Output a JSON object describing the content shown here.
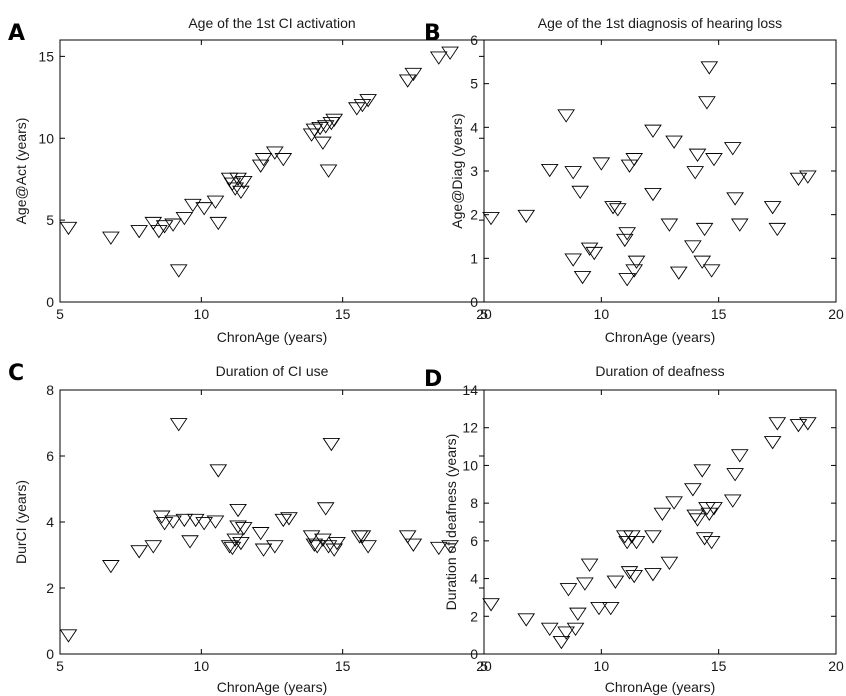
{
  "chart_data": [
    {
      "type": "scatter",
      "letter": "A",
      "title": "Age of the 1st CI activation",
      "xlabel": "ChronAge (years)",
      "ylabel": "Age@Act (years)",
      "xlim": [
        5,
        20
      ],
      "ylim": [
        0,
        16
      ],
      "xticks": [
        5,
        10,
        15,
        20
      ],
      "yticks": [
        0,
        5,
        10,
        15
      ],
      "grid": false,
      "marker": "triangle-down",
      "points": [
        [
          5.3,
          4.6
        ],
        [
          6.8,
          4.0
        ],
        [
          7.8,
          4.4
        ],
        [
          8.3,
          4.9
        ],
        [
          8.5,
          4.4
        ],
        [
          8.7,
          4.7
        ],
        [
          9.0,
          4.8
        ],
        [
          9.2,
          2.0
        ],
        [
          9.4,
          5.2
        ],
        [
          9.7,
          6.0
        ],
        [
          10.1,
          5.8
        ],
        [
          10.5,
          6.2
        ],
        [
          10.6,
          4.9
        ],
        [
          11.0,
          7.6
        ],
        [
          11.1,
          7.3
        ],
        [
          11.2,
          7.0
        ],
        [
          11.3,
          7.6
        ],
        [
          11.4,
          6.8
        ],
        [
          11.5,
          7.4
        ],
        [
          12.1,
          8.4
        ],
        [
          12.2,
          8.8
        ],
        [
          12.6,
          9.2
        ],
        [
          12.9,
          8.8
        ],
        [
          13.9,
          10.3
        ],
        [
          14.0,
          10.6
        ],
        [
          14.2,
          10.7
        ],
        [
          14.3,
          9.8
        ],
        [
          14.4,
          10.8
        ],
        [
          14.5,
          8.1
        ],
        [
          14.6,
          11.0
        ],
        [
          14.7,
          11.2
        ],
        [
          15.5,
          11.9
        ],
        [
          15.7,
          12.1
        ],
        [
          15.9,
          12.4
        ],
        [
          17.3,
          13.6
        ],
        [
          17.5,
          14.0
        ],
        [
          18.4,
          15.0
        ],
        [
          18.8,
          15.3
        ]
      ]
    },
    {
      "type": "scatter",
      "letter": "B",
      "title": "Age of the 1st diagnosis of hearing loss",
      "xlabel": "ChronAge (years)",
      "ylabel": "Age@Diag (years)",
      "xlim": [
        5,
        20
      ],
      "ylim": [
        0,
        6
      ],
      "xticks": [
        5,
        10,
        15,
        20
      ],
      "yticks": [
        0,
        1,
        2,
        3,
        4,
        5,
        6
      ],
      "grid": false,
      "marker": "triangle-down",
      "points": [
        [
          5.3,
          1.95
        ],
        [
          6.8,
          2.0
        ],
        [
          7.8,
          3.05
        ],
        [
          8.5,
          4.3
        ],
        [
          8.8,
          3.0
        ],
        [
          8.8,
          1.0
        ],
        [
          9.1,
          2.55
        ],
        [
          9.2,
          0.6
        ],
        [
          9.5,
          1.25
        ],
        [
          9.7,
          1.15
        ],
        [
          10.0,
          3.2
        ],
        [
          10.5,
          2.2
        ],
        [
          10.7,
          2.15
        ],
        [
          11.0,
          1.45
        ],
        [
          11.1,
          1.6
        ],
        [
          11.1,
          0.55
        ],
        [
          11.2,
          3.15
        ],
        [
          11.4,
          3.3
        ],
        [
          11.4,
          0.75
        ],
        [
          11.5,
          0.95
        ],
        [
          12.2,
          3.95
        ],
        [
          12.2,
          2.5
        ],
        [
          12.9,
          1.8
        ],
        [
          13.1,
          3.7
        ],
        [
          13.3,
          0.7
        ],
        [
          13.9,
          1.3
        ],
        [
          14.0,
          3.0
        ],
        [
          14.1,
          3.4
        ],
        [
          14.3,
          0.95
        ],
        [
          14.4,
          1.7
        ],
        [
          14.5,
          4.6
        ],
        [
          14.6,
          5.4
        ],
        [
          14.7,
          0.75
        ],
        [
          14.8,
          3.3
        ],
        [
          15.6,
          3.55
        ],
        [
          15.7,
          2.4
        ],
        [
          15.9,
          1.8
        ],
        [
          17.3,
          2.2
        ],
        [
          17.5,
          1.7
        ],
        [
          18.4,
          2.85
        ],
        [
          18.8,
          2.9
        ]
      ]
    },
    {
      "type": "scatter",
      "letter": "C",
      "title": "Duration of CI use",
      "xlabel": "ChronAge (years)",
      "ylabel": "DurCI (years)",
      "xlim": [
        5,
        20
      ],
      "ylim": [
        0,
        8
      ],
      "xticks": [
        5,
        10,
        15,
        20
      ],
      "yticks": [
        0,
        2,
        4,
        6,
        8
      ],
      "grid": false,
      "marker": "triangle-down",
      "points": [
        [
          5.3,
          0.6
        ],
        [
          6.8,
          2.7
        ],
        [
          7.8,
          3.15
        ],
        [
          8.3,
          3.3
        ],
        [
          8.6,
          4.2
        ],
        [
          8.7,
          4.0
        ],
        [
          9.0,
          4.05
        ],
        [
          9.2,
          7.0
        ],
        [
          9.4,
          4.1
        ],
        [
          9.6,
          3.45
        ],
        [
          9.8,
          4.1
        ],
        [
          10.1,
          4.0
        ],
        [
          10.5,
          4.05
        ],
        [
          10.6,
          5.6
        ],
        [
          11.0,
          3.3
        ],
        [
          11.1,
          3.25
        ],
        [
          11.2,
          3.5
        ],
        [
          11.3,
          3.9
        ],
        [
          11.3,
          4.4
        ],
        [
          11.4,
          3.4
        ],
        [
          11.5,
          3.85
        ],
        [
          12.1,
          3.7
        ],
        [
          12.2,
          3.2
        ],
        [
          12.6,
          3.3
        ],
        [
          12.9,
          4.1
        ],
        [
          13.1,
          4.15
        ],
        [
          13.9,
          3.6
        ],
        [
          14.0,
          3.35
        ],
        [
          14.1,
          3.3
        ],
        [
          14.3,
          3.5
        ],
        [
          14.4,
          4.45
        ],
        [
          14.5,
          3.3
        ],
        [
          14.6,
          6.4
        ],
        [
          14.7,
          3.2
        ],
        [
          14.8,
          3.4
        ],
        [
          15.6,
          3.6
        ],
        [
          15.7,
          3.6
        ],
        [
          15.9,
          3.3
        ],
        [
          17.3,
          3.6
        ],
        [
          17.5,
          3.35
        ],
        [
          18.4,
          3.25
        ],
        [
          18.8,
          3.3
        ]
      ]
    },
    {
      "type": "scatter",
      "letter": "D",
      "title": "Duration of deafness",
      "xlabel": "ChronAge (years)",
      "ylabel": "Duration of deafness (years)",
      "xlim": [
        5,
        20
      ],
      "ylim": [
        0,
        14
      ],
      "xticks": [
        5,
        10,
        15,
        20
      ],
      "yticks": [
        0,
        2,
        4,
        6,
        8,
        10,
        12,
        14
      ],
      "grid": false,
      "marker": "triangle-down",
      "points": [
        [
          5.3,
          2.7
        ],
        [
          6.8,
          1.9
        ],
        [
          7.8,
          1.4
        ],
        [
          8.3,
          0.7
        ],
        [
          8.5,
          1.2
        ],
        [
          8.6,
          3.5
        ],
        [
          8.9,
          1.4
        ],
        [
          9.0,
          2.2
        ],
        [
          9.3,
          3.8
        ],
        [
          9.5,
          4.8
        ],
        [
          9.9,
          2.5
        ],
        [
          10.4,
          2.5
        ],
        [
          10.6,
          3.9
        ],
        [
          11.0,
          6.3
        ],
        [
          11.1,
          6.0
        ],
        [
          11.2,
          4.4
        ],
        [
          11.3,
          6.3
        ],
        [
          11.4,
          4.2
        ],
        [
          11.5,
          6.0
        ],
        [
          12.2,
          6.3
        ],
        [
          12.2,
          4.3
        ],
        [
          12.6,
          7.5
        ],
        [
          12.9,
          4.9
        ],
        [
          13.1,
          8.1
        ],
        [
          13.9,
          8.8
        ],
        [
          14.0,
          7.4
        ],
        [
          14.1,
          7.2
        ],
        [
          14.3,
          9.8
        ],
        [
          14.4,
          6.2
        ],
        [
          14.5,
          7.8
        ],
        [
          14.6,
          7.5
        ],
        [
          14.7,
          6.0
        ],
        [
          14.8,
          7.8
        ],
        [
          15.6,
          8.2
        ],
        [
          15.7,
          9.6
        ],
        [
          15.9,
          10.6
        ],
        [
          17.3,
          11.3
        ],
        [
          17.5,
          12.3
        ],
        [
          18.4,
          12.2
        ],
        [
          18.8,
          12.3
        ]
      ]
    }
  ]
}
